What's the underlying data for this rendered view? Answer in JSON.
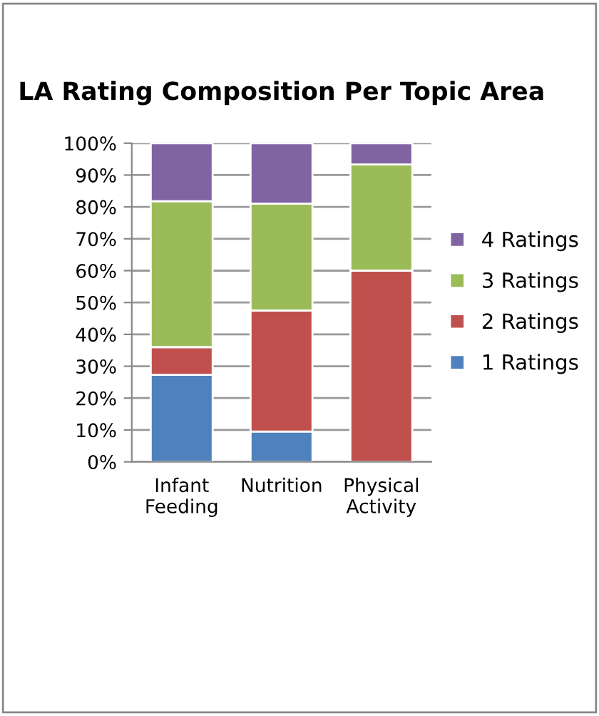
{
  "chart_data": {
    "type": "bar",
    "title": "LA Rating Composition Per Topic Area",
    "stacked": true,
    "categories": [
      "Infant\nFeeding",
      "Nutrition",
      "Physical\nActivity"
    ],
    "series": [
      {
        "name": "1 Ratings",
        "color": "#4f81bd",
        "values": [
          27.3,
          9.5,
          0
        ]
      },
      {
        "name": "2 Ratings",
        "color": "#c0504d",
        "values": [
          8.7,
          38.0,
          60.0
        ]
      },
      {
        "name": "3 Ratings",
        "color": "#9bbb59",
        "values": [
          45.8,
          33.5,
          33.3
        ]
      },
      {
        "name": "4 Ratings",
        "color": "#8064a2",
        "values": [
          18.2,
          19.0,
          6.7
        ]
      }
    ],
    "ylim": [
      0,
      100
    ],
    "yticks": [
      {
        "value": 0,
        "label": "0%"
      },
      {
        "value": 10,
        "label": "10%"
      },
      {
        "value": 20,
        "label": "20%"
      },
      {
        "value": 30,
        "label": "30%"
      },
      {
        "value": 40,
        "label": "40%"
      },
      {
        "value": 50,
        "label": "50%"
      },
      {
        "value": 60,
        "label": "60%"
      },
      {
        "value": 70,
        "label": "70%"
      },
      {
        "value": 80,
        "label": "80%"
      },
      {
        "value": 90,
        "label": "90%"
      },
      {
        "value": 100,
        "label": "100%"
      }
    ],
    "grid": "y",
    "legend": "right"
  }
}
